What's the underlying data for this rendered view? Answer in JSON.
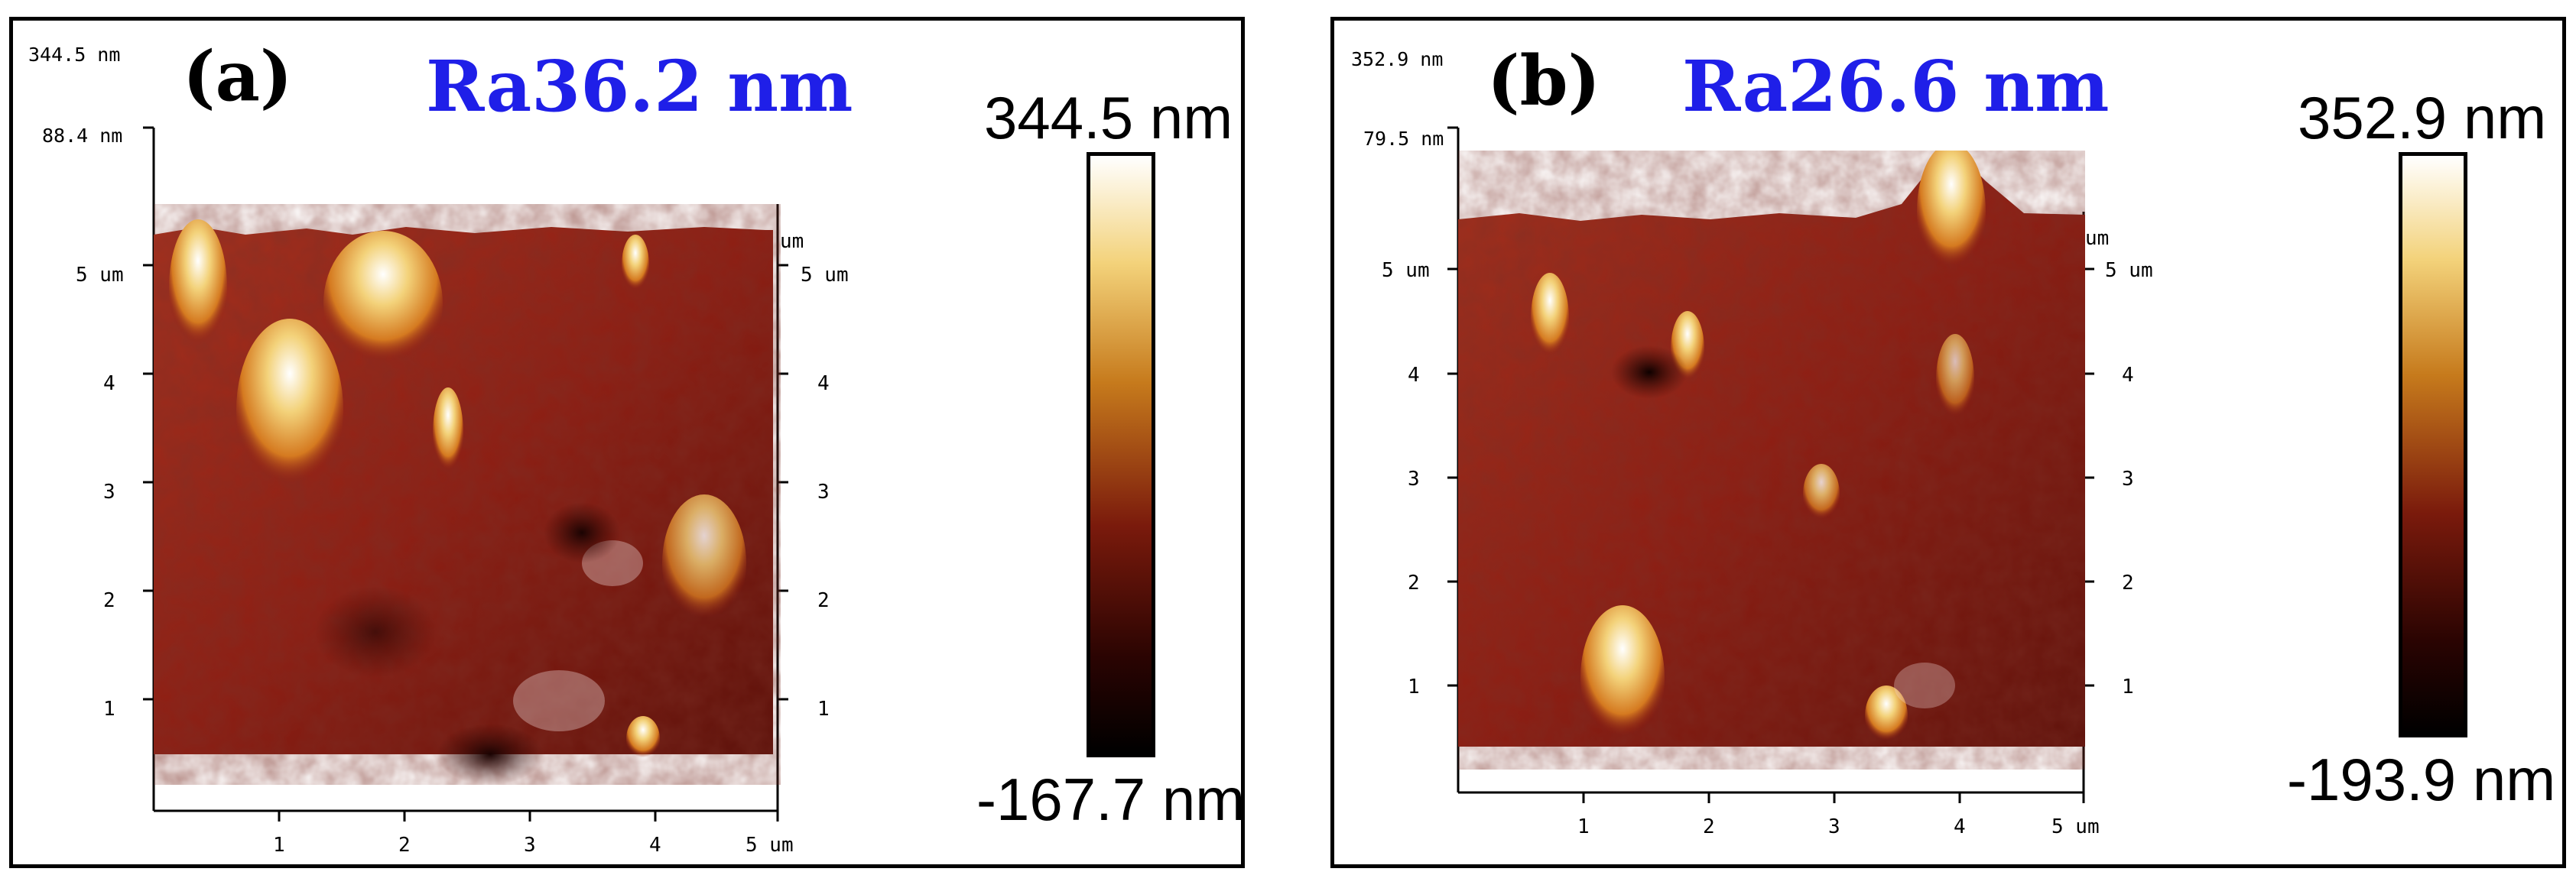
{
  "panels": [
    {
      "label": "(a)",
      "ra_label": "Ra36.2 nm",
      "z_top_small": "344.5 nm",
      "z_mid_small": "88.4 nm",
      "scale_max": "344.5 nm",
      "scale_min": "-167.7 nm",
      "y_unit": "5 um",
      "y_ticks": [
        "4",
        "3",
        "2",
        "1"
      ],
      "x_ticks": [
        "1",
        "2",
        "3",
        "4"
      ],
      "x_unit": "5 um",
      "right_unit": "um",
      "right_y_unit": "5 um",
      "right_y_ticks": [
        "4",
        "3",
        "2",
        "1"
      ]
    },
    {
      "label": "(b)",
      "ra_label": "Ra26.6 nm",
      "z_top_small": "352.9 nm",
      "z_mid_small": "79.5 nm",
      "scale_max": "352.9 nm",
      "scale_min": "-193.9 nm",
      "y_unit": "5 um",
      "y_ticks": [
        "4",
        "3",
        "2",
        "1"
      ],
      "x_ticks": [
        "1",
        "2",
        "3",
        "4"
      ],
      "x_unit": "5 um",
      "right_unit": "um",
      "right_y_unit": "5 um",
      "right_y_ticks": [
        "4",
        "3",
        "2",
        "1"
      ]
    }
  ],
  "colors": {
    "surface_base": "#8e1d12",
    "surface_dark": "#3a0804",
    "peak": "#f3d27a",
    "ra_blue": "#1f1fe8"
  }
}
